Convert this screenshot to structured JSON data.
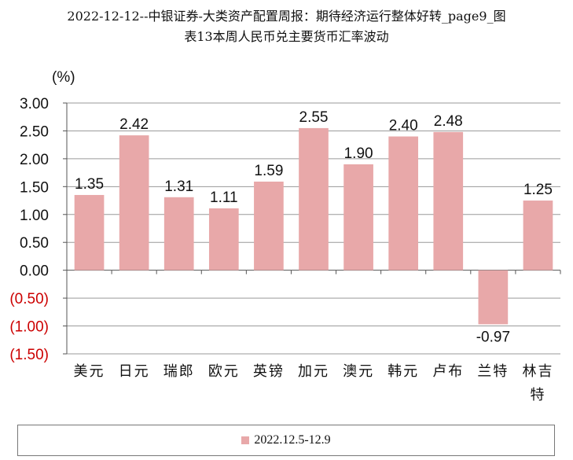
{
  "title": {
    "line1": "2022-12-12--中银证券-大类资产配置周报：期待经济运行整体好转_page9_图",
    "line2": "表13本周人民币兑主要货币汇率波动"
  },
  "chart_data": {
    "type": "bar",
    "ylabel": "(%)",
    "ylim": [
      -1.5,
      3.0
    ],
    "yticks": [
      {
        "value": 3.0,
        "label": "3.00"
      },
      {
        "value": 2.5,
        "label": "2.50"
      },
      {
        "value": 2.0,
        "label": "2.00"
      },
      {
        "value": 1.5,
        "label": "1.50"
      },
      {
        "value": 1.0,
        "label": "1.00"
      },
      {
        "value": 0.5,
        "label": "0.50"
      },
      {
        "value": 0.0,
        "label": "0.00"
      },
      {
        "value": -0.5,
        "label": "(0.50)"
      },
      {
        "value": -1.0,
        "label": "(1.00)"
      },
      {
        "value": -1.5,
        "label": "(1.50)"
      }
    ],
    "grid": true,
    "legend_position": "bottom",
    "categories": [
      "美元",
      "日元",
      "瑞郎",
      "欧元",
      "英镑",
      "加元",
      "澳元",
      "韩元",
      "卢布",
      "兰特",
      "林吉特"
    ],
    "series": [
      {
        "name": "2022.12.5-12.9",
        "color": "#e8a8a9",
        "values": [
          1.35,
          2.42,
          1.31,
          1.11,
          1.59,
          2.55,
          1.9,
          2.4,
          2.48,
          -0.97,
          1.25
        ],
        "labels": [
          "1.35",
          "2.42",
          "1.31",
          "1.11",
          "1.59",
          "2.55",
          "1.90",
          "2.40",
          "2.48",
          "-0.97",
          "1.25"
        ]
      }
    ],
    "positive_tick_color": "#111111",
    "negative_tick_color": "#cc0000"
  }
}
